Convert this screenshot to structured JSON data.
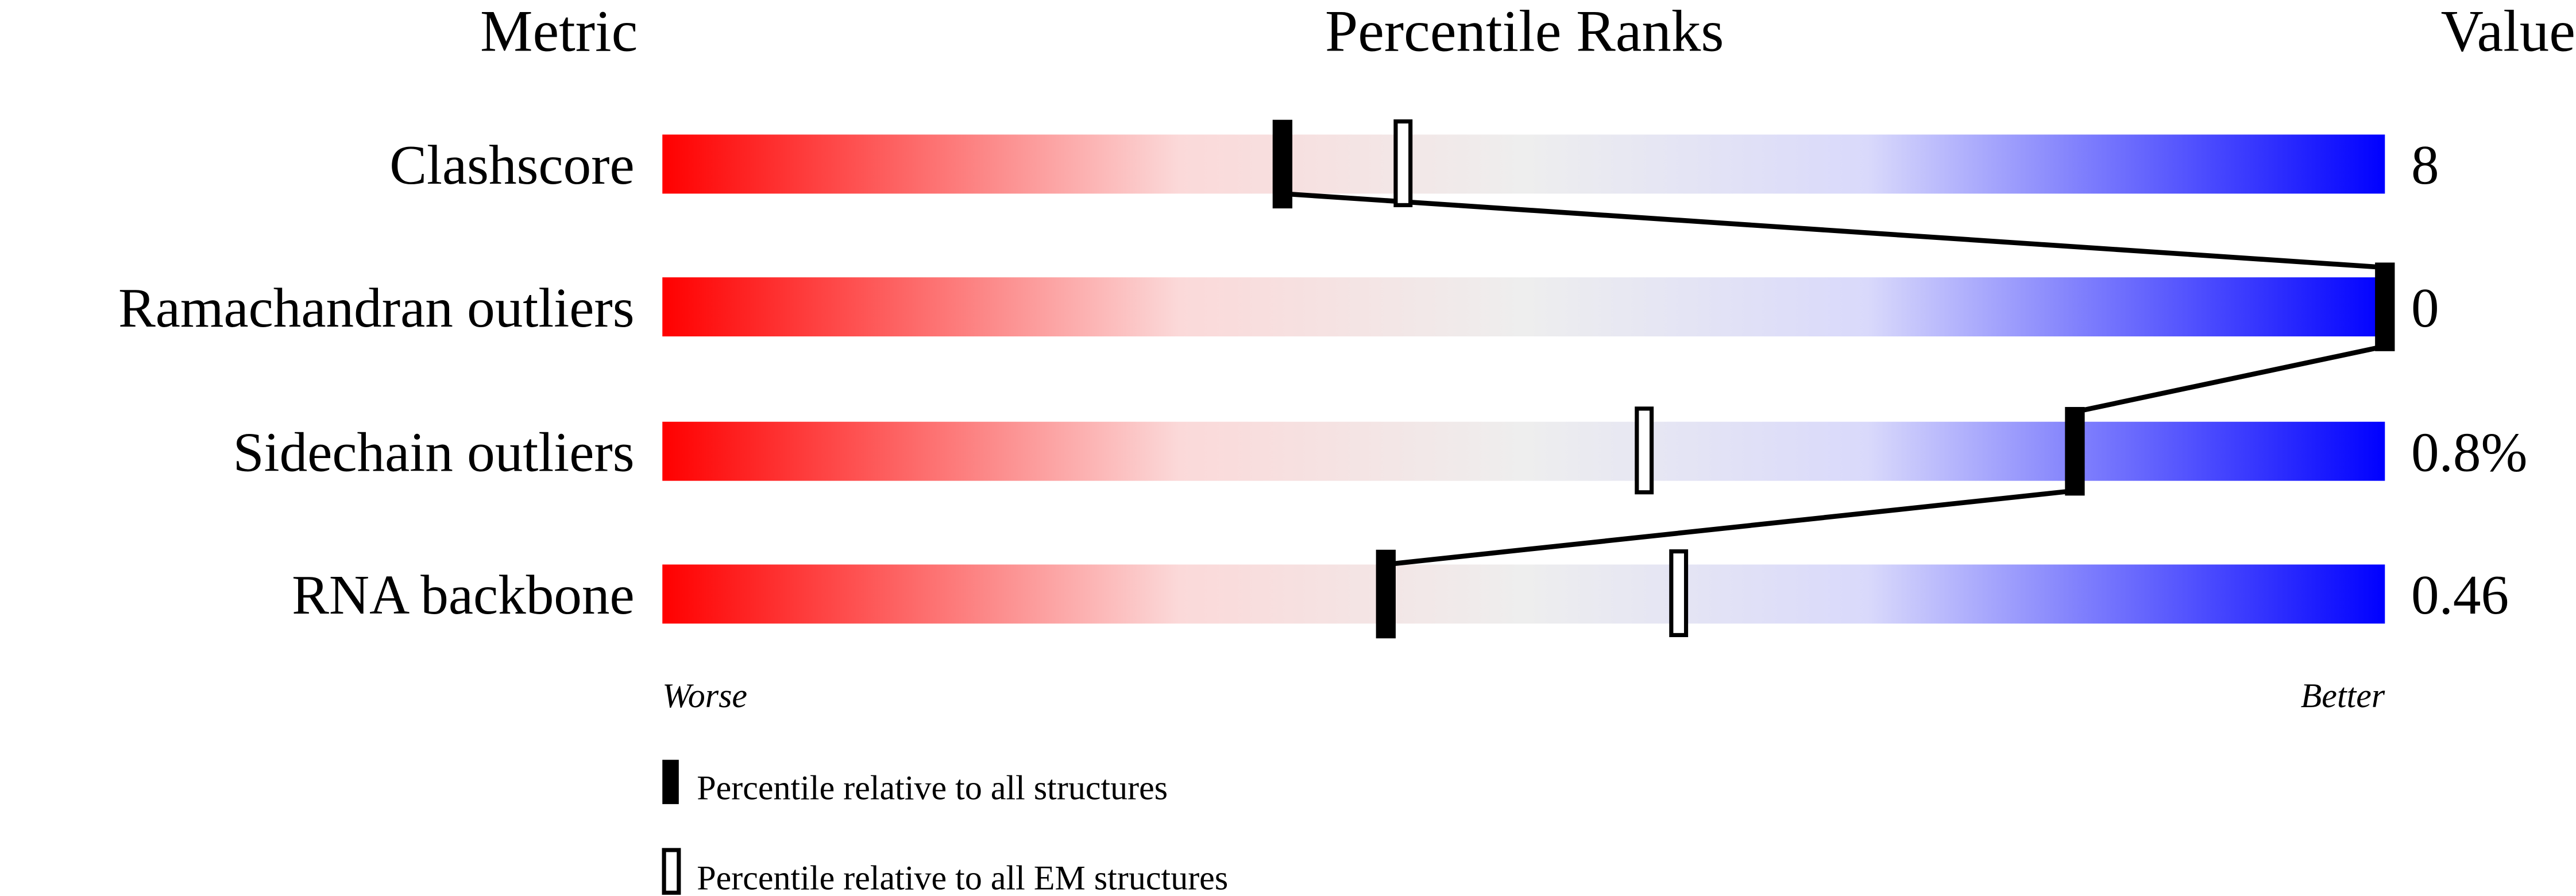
{
  "chart_data": {
    "type": "percentile-slider",
    "headers": {
      "metric": "Metric",
      "ranks": "Percentile Ranks",
      "value": "Value"
    },
    "axis": {
      "left_label": "Worse",
      "right_label": "Better",
      "range": [
        0,
        100
      ]
    },
    "gradient_colors": [
      "#ff0000",
      "#fbd9d9",
      "#eeeeee",
      "#d9d9fb",
      "#0000ff"
    ],
    "metrics": [
      {
        "name": "Clashscore",
        "value": "8",
        "percentile_all": 36,
        "percentile_em": 43
      },
      {
        "name": "Ramachandran outliers",
        "value": "0",
        "percentile_all": 100,
        "percentile_em": 100
      },
      {
        "name": "Sidechain outliers",
        "value": "0.8%",
        "percentile_all": 82,
        "percentile_em": 57
      },
      {
        "name": "RNA backbone",
        "value": "0.46",
        "percentile_all": 42,
        "percentile_em": 59
      }
    ],
    "legend": [
      {
        "marker": "filled",
        "label": "Percentile relative to all structures"
      },
      {
        "marker": "open",
        "label": "Percentile relative to all EM structures"
      }
    ]
  }
}
